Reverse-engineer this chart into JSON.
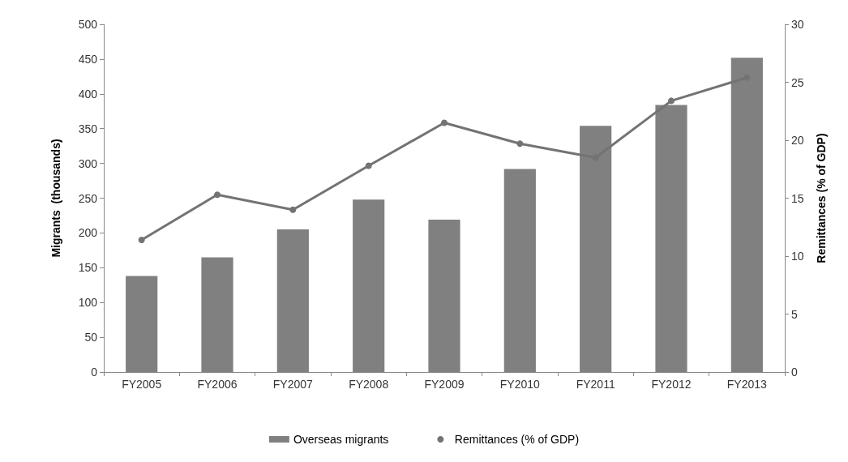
{
  "chart_data": {
    "type": "bar",
    "categories": [
      "FY2005",
      "FY2006",
      "FY2007",
      "FY2008",
      "FY2009",
      "FY2010",
      "FY2011",
      "FY2012",
      "FY2013"
    ],
    "series": [
      {
        "name": "Overseas migrants",
        "color": "#808080",
        "values": [
          138,
          165,
          205,
          248,
          219,
          292,
          354,
          384,
          452
        ]
      },
      {
        "name": "Remittances (% of GDP)",
        "type": "line",
        "axis": "y2",
        "color": "#737373",
        "marker": "circle",
        "values": [
          11.4,
          15.3,
          14.0,
          17.8,
          21.5,
          19.7,
          18.5,
          23.4,
          25.4
        ]
      }
    ],
    "ylabel": "Migrants  (thousands)",
    "y2label": "Remittances (% of GDP)",
    "ylim": [
      0,
      500
    ],
    "yticks": [
      0,
      50,
      100,
      150,
      200,
      250,
      300,
      350,
      400,
      450,
      500
    ],
    "y2lim": [
      0,
      30
    ],
    "y2ticks": [
      0,
      5,
      10,
      15,
      20,
      25,
      30
    ],
    "grid": false,
    "legend": "bottom"
  }
}
